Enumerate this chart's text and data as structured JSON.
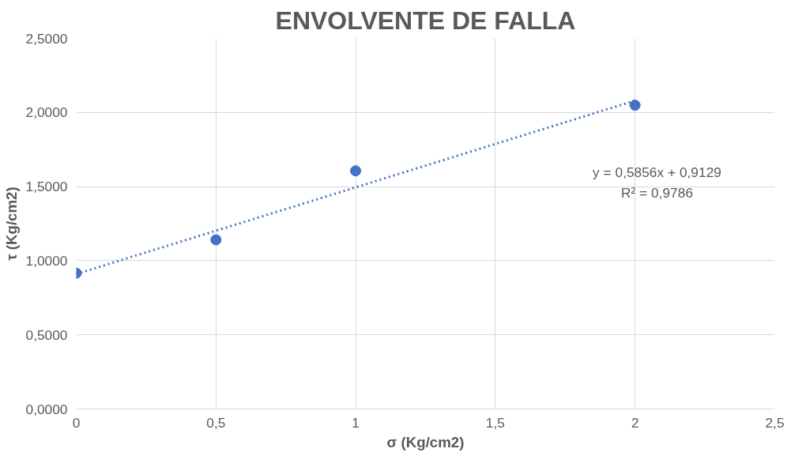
{
  "chart_data": {
    "type": "scatter",
    "title": "ENVOLVENTE DE FALLA",
    "xlabel": "σ (Kg/cm2)",
    "ylabel": "τ (Kg/cm2)",
    "x": [
      0,
      0.5,
      1,
      2
    ],
    "series": [
      {
        "color": "#4472c4",
        "marker": "circle",
        "values": [
          0.916,
          1.141,
          1.606,
          2.049
        ]
      },
      {
        "type": "line",
        "color": "#4472c4",
        "line_style": "dotted",
        "x": [
          0,
          2
        ],
        "values": [
          0.91,
          2.08
        ]
      }
    ],
    "xlim": [
      0,
      2.5
    ],
    "xticks": [
      0,
      {
        "value": 0.5,
        "label": "0,5"
      },
      1,
      {
        "value": 1.5,
        "label": "1,5"
      },
      2,
      {
        "value": 2.5,
        "label": "2,5"
      }
    ],
    "ylim": [
      0,
      2.5
    ],
    "yticks": [
      {
        "value": 0,
        "label": "0,0000"
      },
      {
        "value": 0.5,
        "label": "0,5000"
      },
      {
        "value": 1,
        "label": "1,0000"
      },
      {
        "value": 1.5,
        "label": "1,5000"
      },
      {
        "value": 2,
        "label": "2,0000"
      },
      {
        "value": 2.5,
        "label": "2,5000"
      }
    ],
    "grid": true,
    "annotations": [
      "y = 0,5856x + 0,9129",
      "R² = 0,9786"
    ]
  }
}
